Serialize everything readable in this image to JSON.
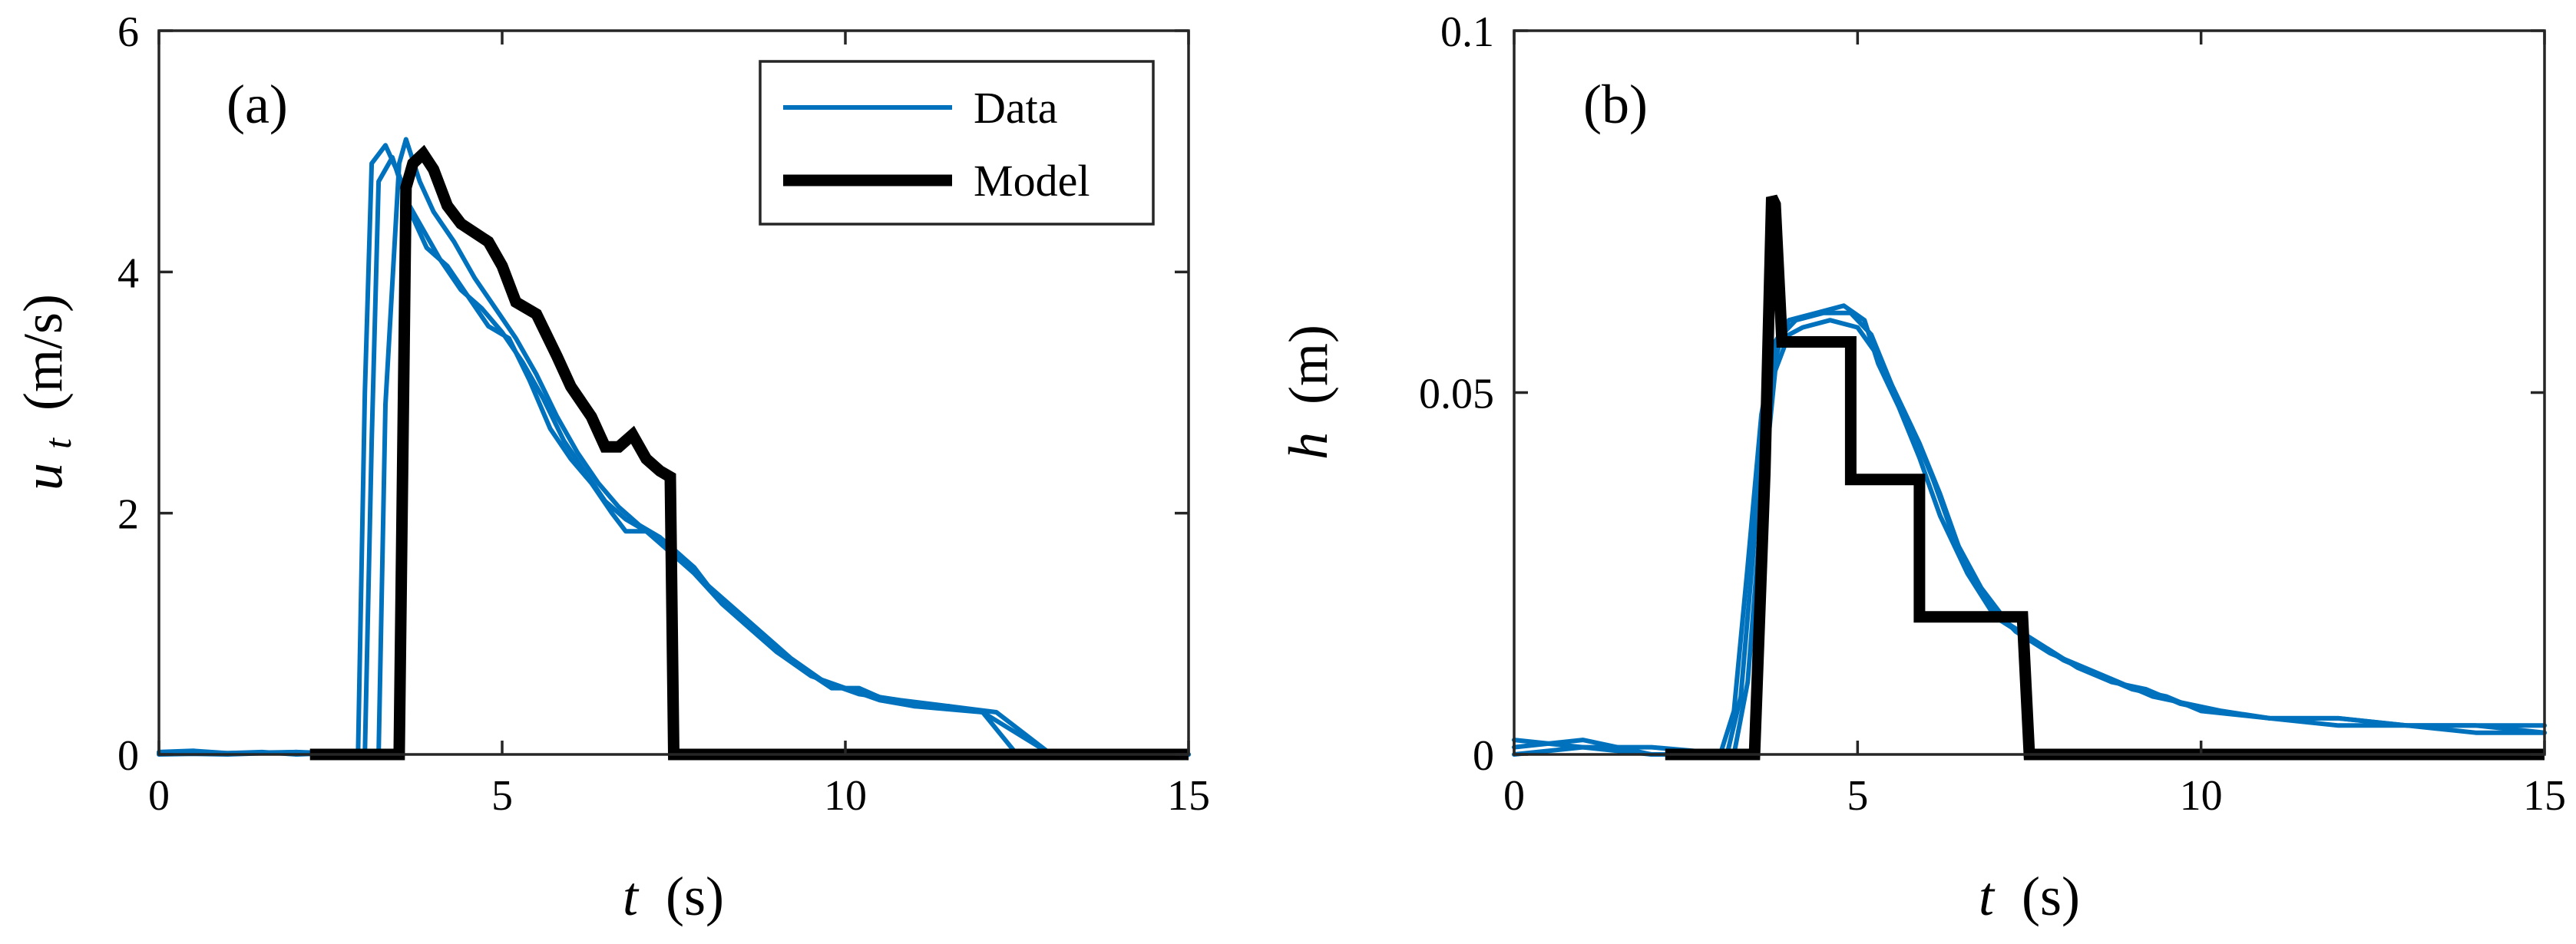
{
  "colors": {
    "data": "#0072BD",
    "model": "#000000"
  },
  "chart_data": [
    {
      "type": "line",
      "panel_label": "(a)",
      "xlabel": "t (s)",
      "xlabel_var": "t",
      "xlabel_unit": "(s)",
      "ylabel": "u_t (m/s)",
      "ylabel_var": "u",
      "ylabel_sub": "t",
      "ylabel_unit": "(m/s)",
      "xlim": [
        0,
        15
      ],
      "ylim": [
        0,
        6
      ],
      "xticks": [
        0,
        5,
        10,
        15
      ],
      "xtick_labels": [
        "0",
        "5",
        "10",
        "15"
      ],
      "yticks": [
        0,
        2,
        4,
        6
      ],
      "ytick_labels": [
        "0",
        "2",
        "4",
        "6"
      ],
      "legend": {
        "position": "top-right",
        "entries": [
          "Data",
          "Model"
        ]
      },
      "series": [
        {
          "name": "Data",
          "style": "data",
          "x": [
            0,
            0.5,
            1,
            1.5,
            2,
            2.5,
            2.9,
            3.0,
            3.1,
            3.3,
            3.5,
            3.7,
            3.9,
            4.2,
            4.5,
            4.8,
            5.1,
            5.4,
            5.7,
            6.0,
            6.3,
            6.6,
            6.8,
            7.1,
            7.4,
            7.8,
            8.2,
            8.6,
            9.0,
            9.4,
            9.8,
            10.2,
            10.6,
            11.0,
            11.5,
            12.0,
            12.5,
            13,
            14,
            15
          ],
          "y": [
            0.02,
            0.03,
            0.01,
            0.02,
            0.0,
            0.01,
            0.0,
            3.0,
            4.9,
            5.05,
            4.8,
            4.45,
            4.2,
            4.05,
            3.8,
            3.55,
            3.45,
            3.1,
            2.7,
            2.45,
            2.25,
            2.0,
            1.85,
            1.85,
            1.75,
            1.55,
            1.25,
            1.05,
            0.85,
            0.7,
            0.55,
            0.55,
            0.45,
            0.4,
            0.4,
            0.35,
            0.0,
            0.0,
            0.0,
            0.0
          ]
        },
        {
          "name": "Data",
          "style": "data",
          "x": [
            0,
            1,
            2,
            2.5,
            3.0,
            3.1,
            3.2,
            3.4,
            3.6,
            3.8,
            4.1,
            4.4,
            4.7,
            5.0,
            5.3,
            5.6,
            5.9,
            6.2,
            6.5,
            6.8,
            7.1,
            7.4,
            7.8,
            8.2,
            8.6,
            9.0,
            9.5,
            10,
            10.5,
            11,
            12,
            13,
            15
          ],
          "y": [
            0.0,
            0.01,
            0.02,
            0.0,
            0.0,
            2.6,
            4.75,
            4.95,
            4.6,
            4.4,
            4.1,
            3.85,
            3.7,
            3.5,
            3.25,
            2.95,
            2.6,
            2.35,
            2.1,
            1.95,
            1.85,
            1.7,
            1.5,
            1.25,
            1.05,
            0.85,
            0.65,
            0.55,
            0.45,
            0.4,
            0.35,
            0.0,
            0.0
          ]
        },
        {
          "name": "Data",
          "style": "data",
          "x": [
            0,
            1,
            2,
            3.0,
            3.2,
            3.3,
            3.5,
            3.6,
            3.8,
            4.0,
            4.3,
            4.6,
            4.9,
            5.2,
            5.5,
            5.8,
            6.1,
            6.4,
            6.7,
            7.0,
            7.3,
            7.6,
            8.0,
            8.4,
            8.8,
            9.2,
            9.7,
            10.2,
            10.8,
            11.5,
            12.2,
            13,
            15
          ],
          "y": [
            0.01,
            0.0,
            0.02,
            0.0,
            0.0,
            2.9,
            4.9,
            5.1,
            4.75,
            4.5,
            4.25,
            3.95,
            3.7,
            3.45,
            3.15,
            2.8,
            2.5,
            2.25,
            2.05,
            1.9,
            1.8,
            1.65,
            1.4,
            1.2,
            1.0,
            0.8,
            0.6,
            0.5,
            0.45,
            0.4,
            0.35,
            0.0,
            0.0
          ]
        },
        {
          "name": "Model",
          "style": "model",
          "x": [
            2.2,
            3.5,
            3.6,
            3.7,
            3.85,
            4.0,
            4.2,
            4.4,
            4.8,
            5.0,
            5.2,
            5.5,
            5.8,
            6.0,
            6.3,
            6.5,
            6.7,
            6.9,
            7.1,
            7.3,
            7.45,
            7.5,
            10.3,
            15
          ],
          "y": [
            0.0,
            0.0,
            4.7,
            4.9,
            4.98,
            4.85,
            4.55,
            4.4,
            4.25,
            4.05,
            3.75,
            3.65,
            3.3,
            3.05,
            2.8,
            2.55,
            2.55,
            2.65,
            2.45,
            2.35,
            2.3,
            0.0,
            0.0,
            0.0
          ]
        }
      ]
    },
    {
      "type": "line",
      "panel_label": "(b)",
      "xlabel": "t (s)",
      "xlabel_var": "t",
      "xlabel_unit": "(s)",
      "ylabel": "h (m)",
      "ylabel_var": "h",
      "ylabel_sub": "",
      "ylabel_unit": "(m)",
      "xlim": [
        0,
        15
      ],
      "ylim": [
        0,
        0.1
      ],
      "xticks": [
        0,
        5,
        10,
        15
      ],
      "xtick_labels": [
        "0",
        "5",
        "10",
        "15"
      ],
      "yticks": [
        0,
        0.05,
        0.1
      ],
      "ytick_labels": [
        "0",
        "0.05",
        "0.1"
      ],
      "legend": null,
      "series": [
        {
          "name": "Data",
          "style": "data",
          "x": [
            0,
            1,
            2,
            3.0,
            3.2,
            3.4,
            3.6,
            3.8,
            4.0,
            4.4,
            4.8,
            5.1,
            5.3,
            5.6,
            5.9,
            6.2,
            6.6,
            7.0,
            7.5,
            8.0,
            8.5,
            9.0,
            9.5,
            10,
            11,
            12,
            13,
            14,
            15
          ],
          "y": [
            0.002,
            0.001,
            0.0,
            0.0,
            0.006,
            0.026,
            0.047,
            0.057,
            0.06,
            0.061,
            0.062,
            0.06,
            0.054,
            0.048,
            0.041,
            0.033,
            0.025,
            0.019,
            0.016,
            0.013,
            0.011,
            0.009,
            0.008,
            0.006,
            0.005,
            0.005,
            0.004,
            0.004,
            0.003
          ]
        },
        {
          "name": "Data",
          "style": "data",
          "x": [
            0,
            1,
            2,
            3.1,
            3.3,
            3.5,
            3.7,
            3.9,
            4.1,
            4.5,
            4.9,
            5.2,
            5.5,
            5.8,
            6.1,
            6.4,
            6.8,
            7.2,
            7.7,
            8.2,
            8.7,
            9.2,
            9.7,
            10.2,
            11,
            12,
            13,
            14,
            15
          ],
          "y": [
            0.001,
            0.002,
            0.0,
            0.0,
            0.008,
            0.03,
            0.051,
            0.058,
            0.06,
            0.061,
            0.061,
            0.058,
            0.051,
            0.045,
            0.038,
            0.03,
            0.023,
            0.018,
            0.015,
            0.012,
            0.01,
            0.009,
            0.007,
            0.006,
            0.005,
            0.005,
            0.004,
            0.004,
            0.004
          ]
        },
        {
          "name": "Data",
          "style": "data",
          "x": [
            0,
            1,
            2,
            3.2,
            3.4,
            3.6,
            3.8,
            4.0,
            4.2,
            4.6,
            5.0,
            5.3,
            5.6,
            5.9,
            6.2,
            6.5,
            6.9,
            7.3,
            7.8,
            8.3,
            8.8,
            9.3,
            9.8,
            10.3,
            11,
            12,
            13,
            14,
            15
          ],
          "y": [
            0.0,
            0.001,
            0.001,
            0.0,
            0.01,
            0.034,
            0.053,
            0.058,
            0.059,
            0.06,
            0.059,
            0.055,
            0.049,
            0.043,
            0.036,
            0.028,
            0.021,
            0.017,
            0.014,
            0.012,
            0.01,
            0.008,
            0.007,
            0.006,
            0.005,
            0.004,
            0.004,
            0.003,
            0.003
          ]
        },
        {
          "name": "Model",
          "style": "model",
          "x": [
            2.2,
            3.5,
            3.65,
            3.75,
            3.8,
            3.9,
            4.9,
            4.9,
            5.9,
            5.9,
            7.4,
            7.5,
            10,
            15
          ],
          "y": [
            0.0,
            0.0,
            0.039,
            0.077,
            0.076,
            0.057,
            0.057,
            0.038,
            0.038,
            0.019,
            0.019,
            0.0,
            0.0,
            0.0
          ]
        }
      ]
    }
  ]
}
